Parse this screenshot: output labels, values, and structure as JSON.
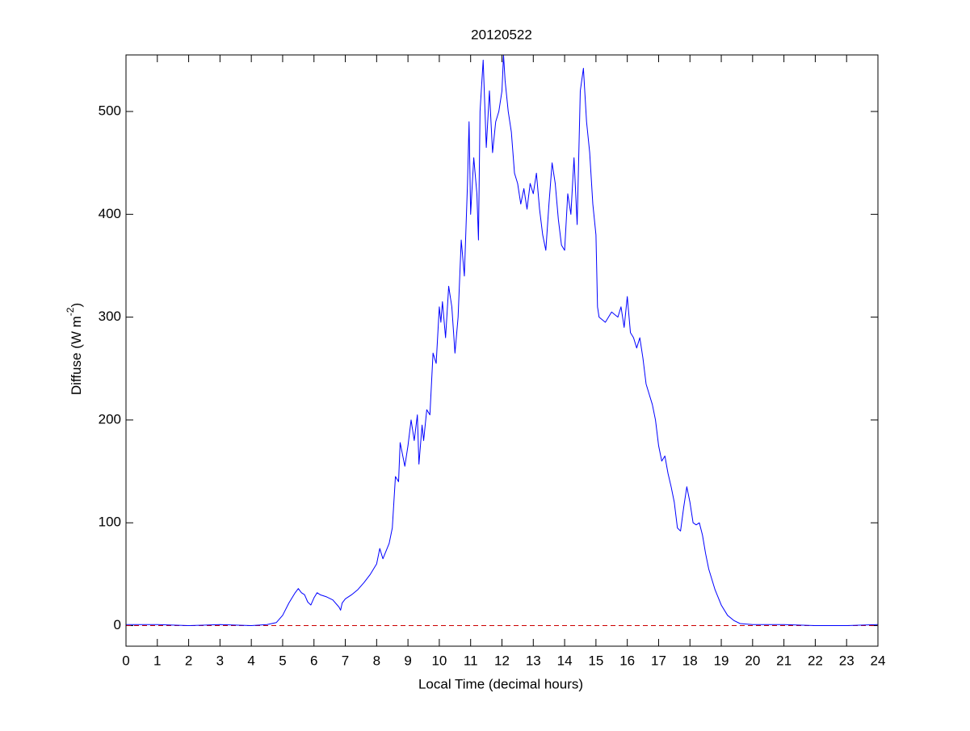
{
  "chart_data": {
    "type": "line",
    "title": "20120522",
    "xlabel": "Local Time (decimal hours)",
    "ylabel": [
      "Diffuse (W m",
      "-2",
      ")"
    ],
    "x": [
      0,
      1,
      2,
      3,
      4,
      4.5,
      4.8,
      5.0,
      5.2,
      5.4,
      5.5,
      5.6,
      5.7,
      5.8,
      5.9,
      6.0,
      6.1,
      6.2,
      6.4,
      6.6,
      6.8,
      6.85,
      6.9,
      7.0,
      7.2,
      7.4,
      7.6,
      7.8,
      8.0,
      8.1,
      8.2,
      8.4,
      8.5,
      8.55,
      8.6,
      8.7,
      8.75,
      8.9,
      9.0,
      9.1,
      9.2,
      9.3,
      9.35,
      9.45,
      9.5,
      9.6,
      9.7,
      9.8,
      9.9,
      10.0,
      10.05,
      10.1,
      10.2,
      10.3,
      10.4,
      10.5,
      10.6,
      10.7,
      10.8,
      10.9,
      10.95,
      11.0,
      11.1,
      11.2,
      11.25,
      11.3,
      11.4,
      11.5,
      11.6,
      11.7,
      11.8,
      11.9,
      12.0,
      12.05,
      12.1,
      12.2,
      12.3,
      12.4,
      12.5,
      12.6,
      12.7,
      12.8,
      12.9,
      13.0,
      13.1,
      13.2,
      13.3,
      13.4,
      13.5,
      13.6,
      13.7,
      13.8,
      13.9,
      14.0,
      14.1,
      14.2,
      14.3,
      14.4,
      14.5,
      14.6,
      14.7,
      14.8,
      14.9,
      15.0,
      15.05,
      15.1,
      15.3,
      15.5,
      15.7,
      15.8,
      15.9,
      16.0,
      16.1,
      16.2,
      16.3,
      16.4,
      16.5,
      16.6,
      16.7,
      16.8,
      16.9,
      17.0,
      17.1,
      17.2,
      17.3,
      17.4,
      17.5,
      17.6,
      17.7,
      17.8,
      17.9,
      18.0,
      18.1,
      18.2,
      18.3,
      18.4,
      18.5,
      18.6,
      18.8,
      19.0,
      19.2,
      19.4,
      19.6,
      20,
      21,
      22,
      23,
      24
    ],
    "series": [
      {
        "color": "#0000ff",
        "values": [
          1,
          1,
          0,
          1,
          0,
          1,
          3,
          10,
          22,
          32,
          36,
          32,
          30,
          23,
          20,
          27,
          32,
          30,
          28,
          25,
          18,
          15,
          22,
          26,
          30,
          35,
          42,
          50,
          60,
          75,
          65,
          80,
          95,
          120,
          145,
          140,
          178,
          155,
          175,
          200,
          180,
          205,
          157,
          195,
          180,
          210,
          205,
          265,
          255,
          310,
          295,
          315,
          280,
          330,
          310,
          265,
          300,
          375,
          340,
          430,
          490,
          400,
          455,
          420,
          375,
          500,
          550,
          465,
          520,
          460,
          490,
          500,
          520,
          555,
          530,
          500,
          480,
          440,
          430,
          410,
          425,
          405,
          430,
          420,
          440,
          405,
          380,
          365,
          410,
          450,
          430,
          395,
          370,
          365,
          420,
          400,
          455,
          390,
          520,
          542,
          490,
          460,
          410,
          380,
          310,
          300,
          295,
          305,
          300,
          310,
          290,
          320,
          285,
          280,
          270,
          280,
          260,
          235,
          225,
          215,
          200,
          175,
          160,
          165,
          148,
          135,
          120,
          95,
          92,
          115,
          135,
          120,
          100,
          98,
          100,
          88,
          70,
          55,
          35,
          20,
          10,
          5,
          2,
          1,
          1,
          0,
          0,
          1
        ]
      }
    ],
    "reference_line": {
      "y": 0,
      "color": "#cc0000",
      "style": "dashed"
    },
    "xlim": [
      0,
      24
    ],
    "xticks": [
      0,
      1,
      2,
      3,
      4,
      5,
      6,
      7,
      8,
      9,
      10,
      11,
      12,
      13,
      14,
      15,
      16,
      17,
      18,
      19,
      20,
      21,
      22,
      23,
      24
    ],
    "ylim": [
      -20,
      555
    ],
    "yticks": [
      0,
      100,
      200,
      300,
      400,
      500
    ]
  }
}
